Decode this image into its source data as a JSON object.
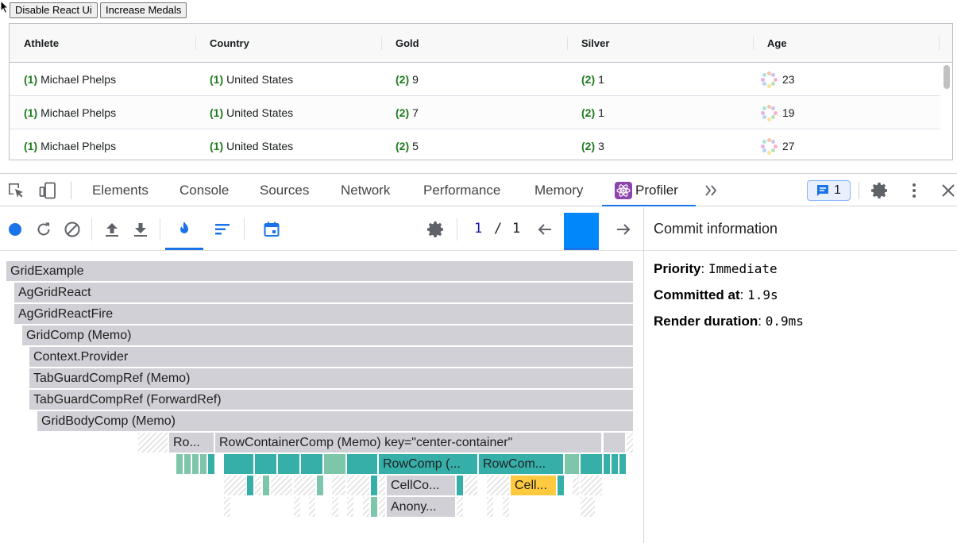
{
  "page": {
    "buttons": {
      "disable_react_ui": "Disable React Ui",
      "increase_medals": "Increase Medals"
    }
  },
  "grid": {
    "columns": [
      "Athlete",
      "Country",
      "Gold",
      "Silver",
      "Age"
    ],
    "rows": [
      {
        "athlete_badge": "(1)",
        "athlete": "Michael Phelps",
        "country_badge": "(1)",
        "country": "United States",
        "gold_badge": "(2)",
        "gold": "9",
        "silver_badge": "(2)",
        "silver": "1",
        "age": "23"
      },
      {
        "athlete_badge": "(1)",
        "athlete": "Michael Phelps",
        "country_badge": "(1)",
        "country": "United States",
        "gold_badge": "(2)",
        "gold": "7",
        "silver_badge": "(2)",
        "silver": "1",
        "age": "19"
      },
      {
        "athlete_badge": "(1)",
        "athlete": "Michael Phelps",
        "country_badge": "(1)",
        "country": "United States",
        "gold_badge": "(2)",
        "gold": "5",
        "silver_badge": "(2)",
        "silver": "3",
        "age": "27"
      }
    ],
    "badge_color": "#1e7a1e"
  },
  "devtools": {
    "tabs": [
      "Elements",
      "Console",
      "Sources",
      "Network",
      "Performance",
      "Memory",
      "Profiler"
    ],
    "active_tab": "Profiler",
    "messages_count": "1",
    "accent": "#1a73e8"
  },
  "profiler": {
    "commit_current": "1",
    "commit_separator": "/",
    "commit_total": "1",
    "flame": [
      "GridExample",
      "AgGridReact",
      "AgGridReactFire",
      "GridComp (Memo)",
      "Context.Provider",
      "TabGuardCompRef (Memo)",
      "TabGuardCompRef (ForwardRef)",
      "GridBodyComp (Memo)",
      "Ro...",
      "RowContainerComp (Memo) key=\"center-container\"",
      "RowComp (...",
      "RowCom...",
      "CellCo...",
      "Cell...",
      "Anony..."
    ]
  },
  "commit_info": {
    "title": "Commit information",
    "priority_label": "Priority",
    "priority_value": "Immediate",
    "committed_label": "Committed at",
    "committed_value": "1.9s",
    "duration_label": "Render duration",
    "duration_value": "0.9ms"
  }
}
